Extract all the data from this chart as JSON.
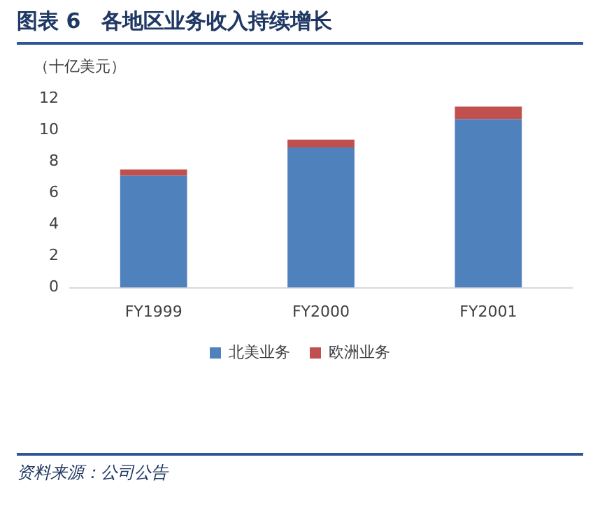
{
  "chart_data": {
    "type": "bar",
    "title": "图表 6　各地区业务收入持续增长",
    "ylabel": "（十亿美元）",
    "categories": [
      "FY1999",
      "FY2000",
      "FY2001"
    ],
    "series": [
      {
        "name": "北美业务",
        "color": "#4f81bd",
        "values": [
          7.1,
          8.9,
          10.7
        ]
      },
      {
        "name": "欧洲业务",
        "color": "#c0504d",
        "values": [
          0.4,
          0.5,
          0.8
        ]
      }
    ],
    "stacked": true,
    "ylim": [
      0,
      12
    ],
    "yticks": [
      0,
      2,
      4,
      6,
      8,
      10,
      12
    ],
    "grid": false,
    "legend": "bottom",
    "annotations": [
      "资料来源：公司公告"
    ]
  }
}
